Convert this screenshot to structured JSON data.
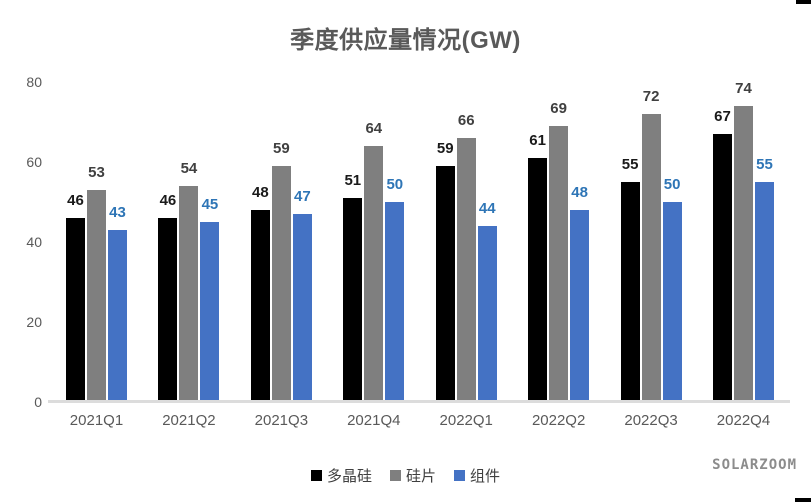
{
  "watermark": "SOLARZOOM",
  "chart_data": {
    "type": "bar",
    "title": "季度供应量情况(GW)",
    "categories": [
      "2021Q1",
      "2021Q2",
      "2021Q3",
      "2021Q4",
      "2022Q1",
      "2022Q2",
      "2022Q3",
      "2022Q4"
    ],
    "series": [
      {
        "name": "多晶硅",
        "color": "#000000",
        "label_color": "#1a1a1a",
        "values": [
          46,
          46,
          48,
          51,
          59,
          61,
          55,
          67
        ]
      },
      {
        "name": "硅片",
        "color": "#7f7f7f",
        "label_color": "#404040",
        "values": [
          53,
          54,
          59,
          64,
          66,
          69,
          72,
          74
        ]
      },
      {
        "name": "组件",
        "color": "#4472c4",
        "label_color": "#2e75b6",
        "values": [
          43,
          45,
          47,
          50,
          44,
          48,
          50,
          55
        ]
      }
    ],
    "y_ticks": [
      0,
      20,
      40,
      60,
      80
    ],
    "ylim": [
      0,
      80
    ],
    "xlabel": "",
    "ylabel": "",
    "grid": false,
    "data_labels": true,
    "legend_position": "bottom",
    "axis_color": "#dcdcdc",
    "tick_label_color": "#595959"
  }
}
